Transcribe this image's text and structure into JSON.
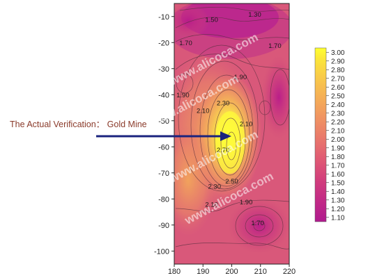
{
  "caption": "The Actual Verification： Gold Mine",
  "watermark": "www.alicoca.com",
  "chart_data": {
    "type": "heatmap",
    "title": "",
    "xlabel": "",
    "ylabel": "",
    "xlim": [
      180,
      220
    ],
    "ylim": [
      -105,
      -5
    ],
    "x_ticks": [
      "180",
      "190",
      "200",
      "210",
      "220"
    ],
    "y_ticks": [
      "-10",
      "-20",
      "-30",
      "-40",
      "-50",
      "-60",
      "-70",
      "-80",
      "-90",
      "-100"
    ],
    "colorbar": {
      "min": 1.1,
      "max": 3.0,
      "labels": [
        "3.00",
        "2.90",
        "2.80",
        "2.70",
        "2.60",
        "2.50",
        "2.40",
        "2.30",
        "2.20",
        "2.10",
        "2.00",
        "1.90",
        "1.80",
        "1.70",
        "1.60",
        "1.50",
        "1.40",
        "1.30",
        "1.20",
        "1.10"
      ],
      "stops": [
        "#b01b8e",
        "#c22a86",
        "#d23e7c",
        "#e05a74",
        "#e9786b",
        "#f09462",
        "#f5b056",
        "#f9cc48",
        "#fbe43a",
        "#ffff30"
      ]
    },
    "contour_labels": [
      {
        "text": "1.30",
        "x": 208,
        "y": -10
      },
      {
        "text": "1.50",
        "x": 193,
        "y": -12
      },
      {
        "text": "1.70",
        "x": 184,
        "y": -21
      },
      {
        "text": "1.70",
        "x": 215,
        "y": -22
      },
      {
        "text": "1.90",
        "x": 203,
        "y": -34
      },
      {
        "text": "1.90",
        "x": 183,
        "y": -41
      },
      {
        "text": "2.10",
        "x": 190,
        "y": -47
      },
      {
        "text": "2.30",
        "x": 197,
        "y": -44
      },
      {
        "text": "2.10",
        "x": 205,
        "y": -52
      },
      {
        "text": "2.70",
        "x": 197,
        "y": -62
      },
      {
        "text": "2.50",
        "x": 200,
        "y": -74
      },
      {
        "text": "2.30",
        "x": 194,
        "y": -76
      },
      {
        "text": "2.10",
        "x": 193,
        "y": -83
      },
      {
        "text": "1.90",
        "x": 205,
        "y": -82
      },
      {
        "text": "1.70",
        "x": 209,
        "y": -90
      }
    ],
    "peak": {
      "x": 200,
      "y": -63,
      "value": 3.0
    }
  }
}
